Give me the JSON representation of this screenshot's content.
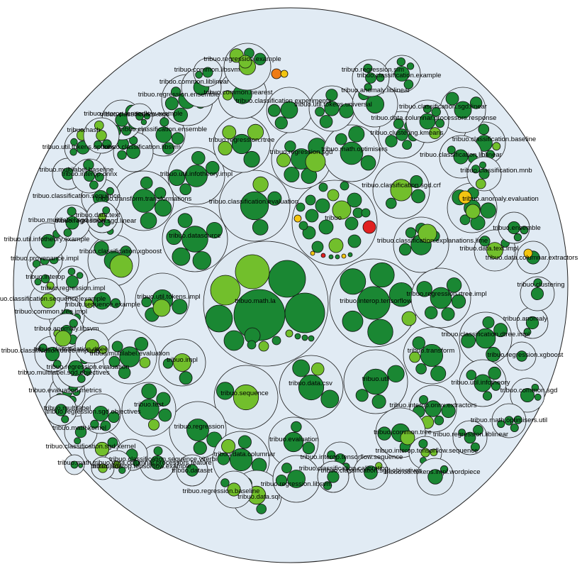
{
  "colors": {
    "background": "#ffffff",
    "root_fill": "#e1ebf4",
    "package_fill": "#dde8f1",
    "leaf_dark_green": "#1a8733",
    "leaf_light_green": "#72bf2c",
    "leaf_yellow": "#f3c511",
    "leaf_orange": "#ef7b15",
    "leaf_red": "#e02020"
  },
  "packages": [
    {
      "name": "tribuo.math.la"
    },
    {
      "name": "tribuo"
    },
    {
      "name": "tribuo.interop.tensorflow"
    },
    {
      "name": "tribuo.classification.evaluation"
    },
    {
      "name": "tribuo.datasource"
    },
    {
      "name": "tribuo.util.infotheory.impl"
    },
    {
      "name": "tribuo.transform.transformations"
    },
    {
      "name": "tribuo.regression.rtree"
    },
    {
      "name": "tribuo.regression.sgd"
    },
    {
      "name": "tribuo.math.optimisers"
    },
    {
      "name": "tribuo.classification.sgd.crf"
    },
    {
      "name": "tribuo.classification.explanations.lime"
    },
    {
      "name": "tribuo.regression.rtree.impl"
    },
    {
      "name": "tribuo.util.tokens.impl"
    },
    {
      "name": "tribuo.multilabel.evaluation"
    },
    {
      "name": "tribuo.impl"
    },
    {
      "name": "tribuo.sequence"
    },
    {
      "name": "tribuo.data.csv"
    },
    {
      "name": "tribuo.util"
    },
    {
      "name": "tribuo.transform"
    },
    {
      "name": "tribuo.classification.dtree.impl"
    },
    {
      "name": "tribuo.interop.onnx.extractors"
    },
    {
      "name": "tribuo.util.infotheory"
    },
    {
      "name": "tribuo.regression"
    },
    {
      "name": "tribuo.data.columnar"
    },
    {
      "name": "tribuo.evaluation"
    },
    {
      "name": "tribuo.common.tree"
    },
    {
      "name": "tribuo.interop.tensorflow.sequence"
    },
    {
      "name": "tribuo.test"
    },
    {
      "name": "tribuo.classification.xgboost"
    },
    {
      "name": "tribuo.anomaly.evaluation"
    },
    {
      "name": "tribuo.data.text.impl"
    },
    {
      "name": "tribuo.data.columnar.extractors"
    },
    {
      "name": "tribuo.classification.baseline"
    },
    {
      "name": "tribuo.classification.liblinear"
    },
    {
      "name": "tribuo.classification.mnb"
    },
    {
      "name": "tribuo.clustering.kmeans"
    },
    {
      "name": "tribuo.classification.sgd.linear"
    },
    {
      "name": "tribuo.classification.ensemble"
    },
    {
      "name": "tribuo.classification.libsvm"
    },
    {
      "name": "tribuo.regression.ensemble"
    },
    {
      "name": "tribuo.common.nearest"
    },
    {
      "name": "tribuo.classification.experiments"
    },
    {
      "name": "tribuo.util.tokens.universal"
    },
    {
      "name": "tribuo.anomaly.liblinear"
    },
    {
      "name": "tribuo.data.columnar.processors.response"
    },
    {
      "name": "tribuo.classification.example"
    },
    {
      "name": "tribuo.regression.slm"
    },
    {
      "name": "tribuo.common.liblinear"
    },
    {
      "name": "tribuo.regression.example"
    },
    {
      "name": "tribuo.common.libsvm"
    },
    {
      "name": "tribuo.ensemble"
    },
    {
      "name": "tribuo.anomaly"
    },
    {
      "name": "tribuo.clustering"
    },
    {
      "name": "tribuo.regression.xgboost"
    },
    {
      "name": "tribuo.common.sgd"
    },
    {
      "name": "tribuo.math.optimisers.util"
    },
    {
      "name": "tribuo.regression.liblinear"
    },
    {
      "name": "tribuo.data.sql"
    },
    {
      "name": "tribuo.regression.libsvm"
    },
    {
      "name": "tribuo.regression.baseline"
    },
    {
      "name": "tribuo.dataset"
    },
    {
      "name": "tribuo.classification.sgd.kernel"
    },
    {
      "name": "tribuo.util.tokens.impl.wordpiece"
    },
    {
      "name": "tribuo.classification.sequence.viterbi"
    },
    {
      "name": "tribuo.data.columnar.processors.feature"
    },
    {
      "name": "tribuo.math.kernel"
    },
    {
      "name": "tribuo.math"
    },
    {
      "name": "tribuo.regression.sgd.objectives"
    },
    {
      "name": "tribuo.evaluation.metrics"
    },
    {
      "name": "tribuo.multilabel.sgd.objectives"
    },
    {
      "name": "tribuo.regression.evaluation"
    },
    {
      "name": "tribuo.classification.dtree.impurity"
    },
    {
      "name": "tribuo.common.tree.impl"
    },
    {
      "name": "tribuo.classification.sequence.example"
    },
    {
      "name": "tribuo.regression.sgd.linear"
    },
    {
      "name": "tribuo.provenance.impl"
    },
    {
      "name": "tribuo.util.infotheory.example"
    },
    {
      "name": "tribuo.multilabel.sgd.linear"
    },
    {
      "name": "tribuo.multilabel.baseline"
    },
    {
      "name": "tribuo.anomaly.libsvm"
    },
    {
      "name": "tribuo.classification.sequence"
    },
    {
      "name": "tribuo.util.tokens.options"
    },
    {
      "name": "tribuo.interop.onnx"
    },
    {
      "name": "tribuo.interop.tensorflow.example"
    },
    {
      "name": "tribuo.data.text"
    },
    {
      "name": "tribuo.classification.dtree"
    },
    {
      "name": "tribuo.sequence.example"
    },
    {
      "name": "tribuo.interop"
    },
    {
      "name": "tribuo.hash"
    },
    {
      "name": "tribuo.classification.sgd"
    },
    {
      "name": "tribuo.regression.impl"
    },
    {
      "name": "tribuo.interop.tensorflow.sequence"
    },
    {
      "name": "tribuo.classification.sgd.objectives"
    },
    {
      "name": "tribuo.classification.calibration"
    },
    {
      "name": "tribuo.multilabel"
    },
    {
      "name": "tribuo.json"
    },
    {
      "name": "tribuo.interop.tensorflow.example"
    }
  ]
}
